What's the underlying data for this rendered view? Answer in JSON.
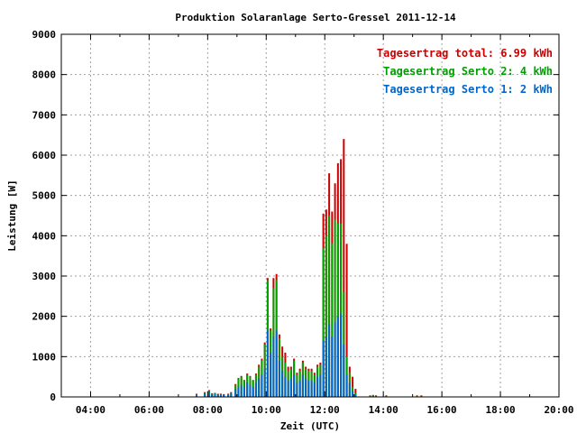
{
  "chart_data": {
    "type": "bar",
    "title": "Produktion Solaranlage Serto-Gressel 2011-12-14",
    "xlabel": "Zeit (UTC)",
    "ylabel": "Leistung [W]",
    "xlim": [
      3.0,
      20.0
    ],
    "ylim": [
      0,
      9000
    ],
    "x_ticks": [
      {
        "value": 4,
        "label": "04:00"
      },
      {
        "value": 6,
        "label": "06:00"
      },
      {
        "value": 8,
        "label": "08:00"
      },
      {
        "value": 10,
        "label": "10:00"
      },
      {
        "value": 12,
        "label": "12:00"
      },
      {
        "value": 14,
        "label": "14:00"
      },
      {
        "value": 16,
        "label": "16:00"
      },
      {
        "value": 18,
        "label": "18:00"
      },
      {
        "value": 20,
        "label": "20:00"
      }
    ],
    "y_ticks": [
      {
        "value": 0,
        "label": "0"
      },
      {
        "value": 1000,
        "label": "1000"
      },
      {
        "value": 2000,
        "label": "2000"
      },
      {
        "value": 3000,
        "label": "3000"
      },
      {
        "value": 4000,
        "label": "4000"
      },
      {
        "value": 5000,
        "label": "5000"
      },
      {
        "value": 6000,
        "label": "6000"
      },
      {
        "value": 7000,
        "label": "7000"
      },
      {
        "value": 8000,
        "label": "8000"
      },
      {
        "value": 9000,
        "label": "9000"
      }
    ],
    "grid": true,
    "legend_position": "top-right",
    "legend": [
      {
        "text": "Tagesertrag total: 6.99 kWh",
        "color": "#cc0000"
      },
      {
        "text": "Tagesertrag Serto 2: 4 kWh",
        "color": "#00a000"
      },
      {
        "text": "Tagesertrag Serto 1: 2 kWh",
        "color": "#0066cc"
      }
    ],
    "colors": {
      "total": "#cc0000",
      "serto2": "#00a000",
      "serto1": "#0066cc"
    },
    "x": [
      7.62,
      7.9,
      8.05,
      8.15,
      8.25,
      8.35,
      8.45,
      8.55,
      8.7,
      8.8,
      8.95,
      9.05,
      9.15,
      9.25,
      9.35,
      9.45,
      9.55,
      9.65,
      9.75,
      9.85,
      9.95,
      10.05,
      10.15,
      10.25,
      10.35,
      10.45,
      10.55,
      10.65,
      10.75,
      10.85,
      10.95,
      11.05,
      11.15,
      11.25,
      11.35,
      11.45,
      11.55,
      11.65,
      11.75,
      11.85,
      11.95,
      12.05,
      12.15,
      12.25,
      12.35,
      12.45,
      12.55,
      12.65,
      12.75,
      12.85,
      12.95,
      13.05,
      13.55,
      13.65,
      13.75,
      14.1,
      15.15,
      15.3
    ],
    "series": [
      {
        "key": "serto1",
        "values": [
          60,
          80,
          120,
          70,
          80,
          60,
          60,
          50,
          60,
          80,
          200,
          250,
          300,
          250,
          350,
          300,
          250,
          350,
          450,
          550,
          700,
          1650,
          1100,
          1500,
          1650,
          900,
          650,
          500,
          400,
          450,
          550,
          350,
          400,
          550,
          450,
          400,
          400,
          350,
          500,
          550,
          1400,
          1500,
          1800,
          1500,
          1850,
          2000,
          2050,
          1300,
          550,
          350,
          150,
          60,
          20,
          30,
          20,
          20,
          20,
          20
        ]
      },
      {
        "key": "serto2",
        "values": [
          70,
          100,
          150,
          80,
          90,
          70,
          70,
          60,
          70,
          100,
          300,
          450,
          500,
          400,
          550,
          500,
          400,
          550,
          750,
          900,
          1300,
          2900,
          1650,
          2700,
          2900,
          1450,
          1000,
          850,
          650,
          700,
          900,
          550,
          650,
          850,
          700,
          650,
          650,
          550,
          750,
          800,
          3700,
          4000,
          4500,
          3800,
          4400,
          4300,
          4300,
          2600,
          1000,
          600,
          250,
          100,
          30,
          40,
          30,
          30,
          30,
          30
        ]
      },
      {
        "key": "total",
        "values": [
          80,
          120,
          170,
          90,
          100,
          80,
          80,
          70,
          80,
          120,
          320,
          470,
          520,
          420,
          580,
          520,
          420,
          580,
          800,
          950,
          1350,
          2950,
          1700,
          2950,
          3050,
          1550,
          1250,
          1100,
          750,
          750,
          950,
          600,
          700,
          900,
          750,
          700,
          700,
          600,
          800,
          850,
          4550,
          4650,
          5550,
          4600,
          5300,
          5800,
          5900,
          6400,
          3800,
          750,
          500,
          200,
          40,
          50,
          40,
          40,
          40,
          40
        ]
      }
    ]
  }
}
